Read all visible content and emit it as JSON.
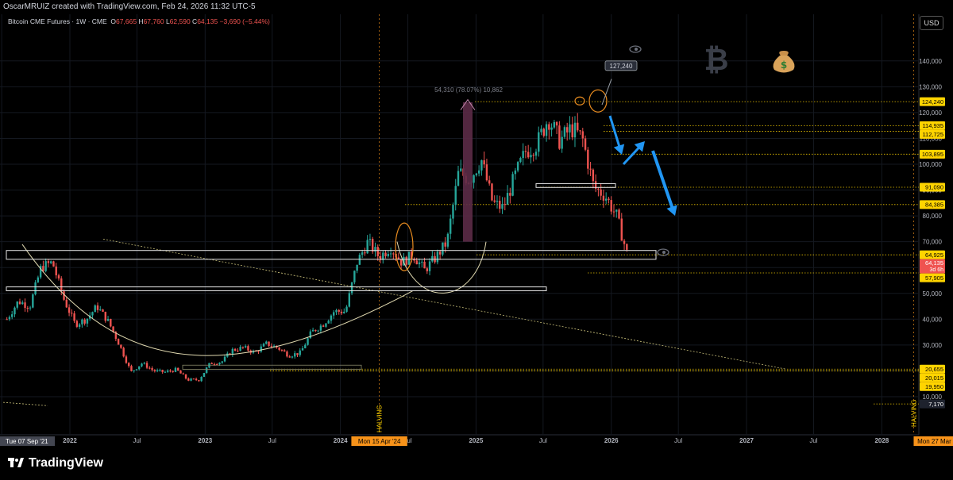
{
  "attribution": "OscarMRUIZ created with TradingView.com, Feb 24, 2026 11:32 UTC-5",
  "legend": {
    "symbol": "Bitcoin CME Futures · 1W · CME",
    "o_label": "O",
    "o": "67,665",
    "h_label": "H",
    "h": "67,760",
    "l_label": "L",
    "l": "62,590",
    "c_label": "C",
    "c": "64,135",
    "change": "−3,690 (−5.44%)"
  },
  "currency_button": "USD",
  "branding": "TradingView",
  "colors": {
    "up": "#26a69a",
    "down": "#ef5350",
    "level": "#ffd400",
    "annotation": "#2196f3"
  },
  "icons": [
    "bitcoin-icon",
    "money-bag-icon",
    "eye-icon"
  ],
  "chart_data": {
    "type": "candlestick",
    "timeframe": "1W",
    "ylim": [
      0,
      150000
    ],
    "y_ticks": [
      "10,000",
      "20,000",
      "30,000",
      "40,000",
      "50,000",
      "60,000",
      "70,000",
      "80,000",
      "90,000",
      "100,000",
      "110,000",
      "120,000",
      "130,000",
      "140,000"
    ],
    "x_ticks": [
      "Jul",
      "2022",
      "Jul",
      "2023",
      "Jul",
      "2024",
      "Jul",
      "2025",
      "Jul",
      "2026",
      "Jul",
      "2027",
      "Jul",
      "2028"
    ],
    "x_highlight_labels": [
      "Tue 07 Sep '21",
      "Mon 15 Apr '24",
      "Mon 27 Mar"
    ],
    "vertical_markers": [
      {
        "label": "HALVING",
        "date": "2024-04-15"
      },
      {
        "label": "HALVING",
        "date": "2028-03-27"
      }
    ],
    "price_levels": [
      124240,
      114935,
      112725,
      103895,
      91090,
      84385,
      64925,
      57905,
      20655,
      20015,
      19950,
      7170
    ],
    "price_level_labels": [
      "124,240",
      "114,935",
      "112,725",
      "103,895",
      "91,090",
      "84,385",
      "64,925",
      "57,905",
      "20,655",
      "20,015",
      "19,950",
      "7,170"
    ],
    "last_price": {
      "value": 64135,
      "label": "64,135",
      "countdown": "3d 6h"
    },
    "annotations": {
      "measure": "54,310 (78.07%) 10,862",
      "peak_callout": "127,240"
    },
    "candles_weekly_close": [
      [
        "2021-07",
        40000
      ],
      [
        "2021-08",
        47000
      ],
      [
        "2021-09",
        45000
      ],
      [
        "2021-10",
        60000
      ],
      [
        "2021-11",
        62000
      ],
      [
        "2021-12",
        48000
      ],
      [
        "2022-01",
        38000
      ],
      [
        "2022-02",
        40000
      ],
      [
        "2022-03",
        45000
      ],
      [
        "2022-04",
        39000
      ],
      [
        "2022-05",
        30000
      ],
      [
        "2022-06",
        19500
      ],
      [
        "2022-07",
        23000
      ],
      [
        "2022-08",
        20000
      ],
      [
        "2022-09",
        19500
      ],
      [
        "2022-10",
        20500
      ],
      [
        "2022-11",
        16500
      ],
      [
        "2022-12",
        16500
      ],
      [
        "2023-01",
        23000
      ],
      [
        "2023-02",
        23500
      ],
      [
        "2023-03",
        28000
      ],
      [
        "2023-04",
        29000
      ],
      [
        "2023-05",
        27000
      ],
      [
        "2023-06",
        30500
      ],
      [
        "2023-07",
        29000
      ],
      [
        "2023-08",
        26000
      ],
      [
        "2023-09",
        27000
      ],
      [
        "2023-10",
        35000
      ],
      [
        "2023-11",
        38000
      ],
      [
        "2023-12",
        43000
      ],
      [
        "2024-01",
        43000
      ],
      [
        "2024-02",
        62000
      ],
      [
        "2024-03",
        70000
      ],
      [
        "2024-04",
        64000
      ],
      [
        "2024-05",
        68000
      ],
      [
        "2024-06",
        62000
      ],
      [
        "2024-07",
        65000
      ],
      [
        "2024-08",
        59000
      ],
      [
        "2024-09",
        64000
      ],
      [
        "2024-10",
        70000
      ],
      [
        "2024-11",
        97000
      ],
      [
        "2024-12",
        94000
      ],
      [
        "2025-01",
        102000
      ],
      [
        "2025-02",
        85000
      ],
      [
        "2025-03",
        83000
      ],
      [
        "2025-04",
        95000
      ],
      [
        "2025-05",
        105000
      ],
      [
        "2025-06",
        108000
      ],
      [
        "2025-07",
        118000
      ],
      [
        "2025-08",
        109000
      ],
      [
        "2025-09",
        114000
      ],
      [
        "2025-10",
        110000
      ],
      [
        "2025-11",
        91000
      ],
      [
        "2025-12",
        88000
      ],
      [
        "2026-01",
        80000
      ],
      [
        "2026-02",
        64135
      ]
    ]
  }
}
